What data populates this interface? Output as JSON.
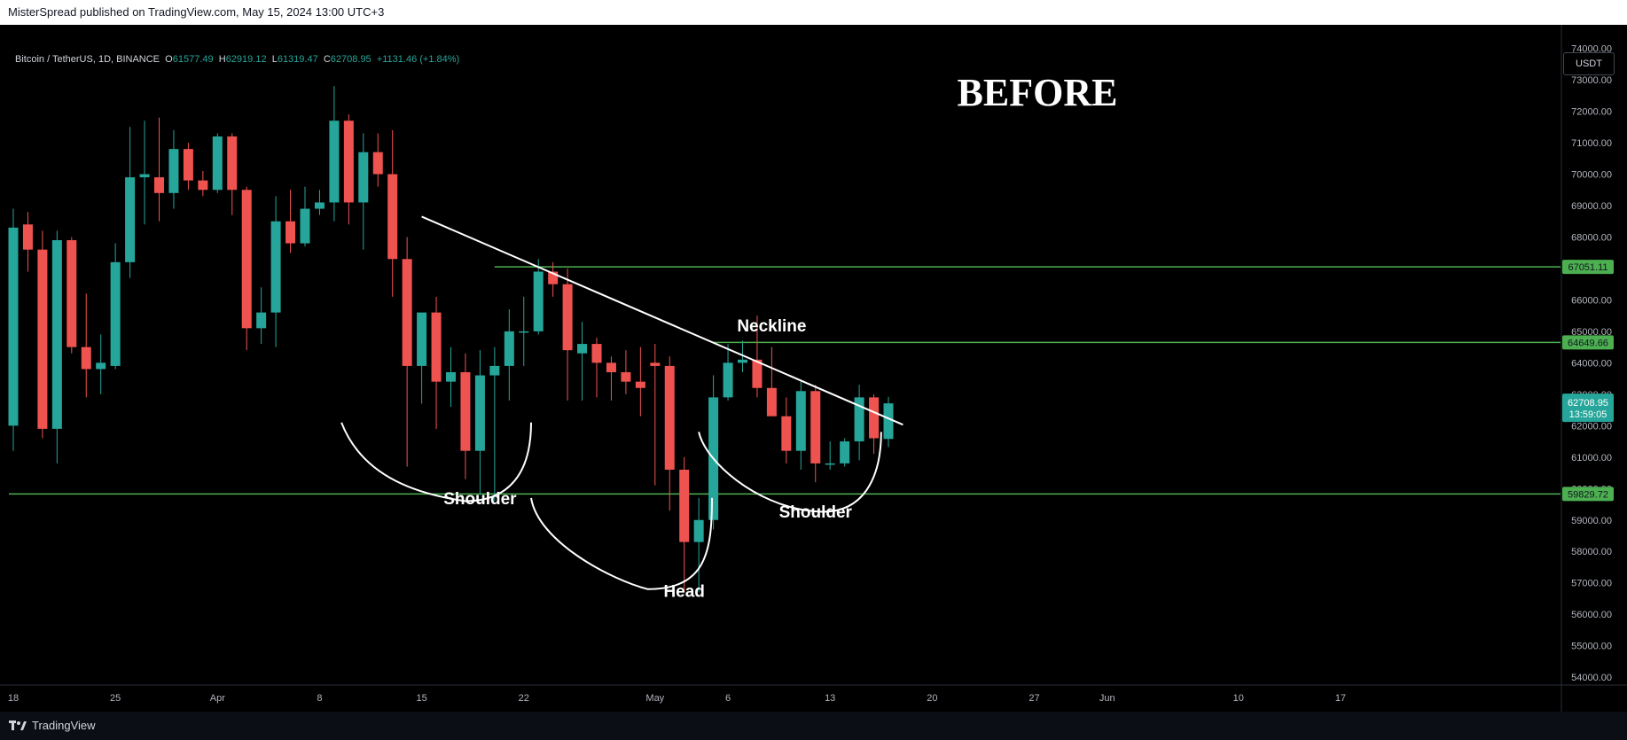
{
  "header": {
    "published_text": "MisterSpread published on TradingView.com, May 15, 2024 13:00 UTC+3"
  },
  "symbol": {
    "name": "Bitcoin / TetherUS, 1D, BINANCE",
    "open_label": "O",
    "open": "61577.49",
    "high_label": "H",
    "high": "62919.12",
    "low_label": "L",
    "low": "61319.47",
    "close_label": "C",
    "close": "62708.95",
    "change": "+1131.46 (+1.84%)"
  },
  "currency_button": "USDT",
  "brand": {
    "name": "TradingView"
  },
  "colors": {
    "up": "#26a69a",
    "down": "#ef5350",
    "level": "#4caf50",
    "background": "#000000",
    "text": "#d1d4dc"
  },
  "chart_data": {
    "type": "candlestick",
    "title": "BEFORE",
    "y_ticks": [
      54000,
      55000,
      56000,
      57000,
      58000,
      59000,
      60000,
      61000,
      62000,
      63000,
      64000,
      65000,
      66000,
      67000,
      68000,
      69000,
      70000,
      71000,
      72000,
      73000,
      74000
    ],
    "ylim": [
      53750,
      74750
    ],
    "x_ticks": [
      {
        "label": "18",
        "i": 0
      },
      {
        "label": "25",
        "i": 7
      },
      {
        "label": "Apr",
        "i": 14
      },
      {
        "label": "8",
        "i": 21
      },
      {
        "label": "15",
        "i": 28
      },
      {
        "label": "22",
        "i": 35
      },
      {
        "label": "May",
        "i": 44
      },
      {
        "label": "6",
        "i": 49
      },
      {
        "label": "13",
        "i": 56
      },
      {
        "label": "20",
        "i": 63
      },
      {
        "label": "27",
        "i": 70
      },
      {
        "label": "Jun",
        "i": 75
      },
      {
        "label": "10",
        "i": 84
      },
      {
        "label": "17",
        "i": 91
      }
    ],
    "candles": [
      {
        "o": 62000,
        "h": 68900,
        "l": 61200,
        "c": 68300
      },
      {
        "o": 68400,
        "h": 68800,
        "l": 66900,
        "c": 67600
      },
      {
        "o": 67600,
        "h": 68200,
        "l": 61600,
        "c": 61900
      },
      {
        "o": 61900,
        "h": 68200,
        "l": 60800,
        "c": 67900
      },
      {
        "o": 67900,
        "h": 68000,
        "l": 64300,
        "c": 64500
      },
      {
        "o": 64500,
        "h": 66200,
        "l": 62900,
        "c": 63800
      },
      {
        "o": 63800,
        "h": 64900,
        "l": 63000,
        "c": 64000
      },
      {
        "o": 63900,
        "h": 67800,
        "l": 63800,
        "c": 67200
      },
      {
        "o": 67200,
        "h": 71500,
        "l": 66700,
        "c": 69900
      },
      {
        "o": 69900,
        "h": 71700,
        "l": 68400,
        "c": 70000
      },
      {
        "o": 69900,
        "h": 71800,
        "l": 68500,
        "c": 69400
      },
      {
        "o": 69400,
        "h": 71400,
        "l": 68900,
        "c": 70800
      },
      {
        "o": 70800,
        "h": 71000,
        "l": 69500,
        "c": 69800
      },
      {
        "o": 69800,
        "h": 70100,
        "l": 69300,
        "c": 69500
      },
      {
        "o": 69500,
        "h": 71300,
        "l": 69400,
        "c": 71200
      },
      {
        "o": 71200,
        "h": 71300,
        "l": 68700,
        "c": 69500
      },
      {
        "o": 69500,
        "h": 69600,
        "l": 64400,
        "c": 65100
      },
      {
        "o": 65100,
        "h": 66400,
        "l": 64600,
        "c": 65600
      },
      {
        "o": 65600,
        "h": 69300,
        "l": 64500,
        "c": 68500
      },
      {
        "o": 68500,
        "h": 69500,
        "l": 67500,
        "c": 67800
      },
      {
        "o": 67800,
        "h": 69600,
        "l": 67700,
        "c": 68900
      },
      {
        "o": 68900,
        "h": 69500,
        "l": 68700,
        "c": 69100
      },
      {
        "o": 69100,
        "h": 72800,
        "l": 68500,
        "c": 71700
      },
      {
        "o": 71700,
        "h": 71900,
        "l": 68400,
        "c": 69100
      },
      {
        "o": 69100,
        "h": 71300,
        "l": 67600,
        "c": 70700
      },
      {
        "o": 70700,
        "h": 71300,
        "l": 69600,
        "c": 70000
      },
      {
        "o": 70000,
        "h": 71400,
        "l": 66100,
        "c": 67300
      },
      {
        "o": 67300,
        "h": 68000,
        "l": 60700,
        "c": 63900
      },
      {
        "o": 63900,
        "h": 65500,
        "l": 62700,
        "c": 65600
      },
      {
        "o": 65600,
        "h": 66100,
        "l": 61900,
        "c": 63400
      },
      {
        "o": 63400,
        "h": 64500,
        "l": 62600,
        "c": 63700
      },
      {
        "o": 63700,
        "h": 64300,
        "l": 60300,
        "c": 61200
      },
      {
        "o": 61200,
        "h": 64400,
        "l": 59800,
        "c": 63600
      },
      {
        "o": 63600,
        "h": 64500,
        "l": 59600,
        "c": 63900
      },
      {
        "o": 63900,
        "h": 65700,
        "l": 62800,
        "c": 65000
      },
      {
        "o": 65000,
        "h": 66100,
        "l": 63900,
        "c": 65000
      },
      {
        "o": 65000,
        "h": 67300,
        "l": 64900,
        "c": 66900
      },
      {
        "o": 66900,
        "h": 67200,
        "l": 66100,
        "c": 66500
      },
      {
        "o": 66500,
        "h": 67000,
        "l": 62800,
        "c": 64400
      },
      {
        "o": 64300,
        "h": 65300,
        "l": 62800,
        "c": 64600
      },
      {
        "o": 64600,
        "h": 64800,
        "l": 62900,
        "c": 64000
      },
      {
        "o": 64000,
        "h": 64200,
        "l": 62800,
        "c": 63700
      },
      {
        "o": 63700,
        "h": 64400,
        "l": 63000,
        "c": 63400
      },
      {
        "o": 63400,
        "h": 64500,
        "l": 62300,
        "c": 63200
      },
      {
        "o": 64000,
        "h": 64600,
        "l": 60100,
        "c": 63900
      },
      {
        "o": 63900,
        "h": 64200,
        "l": 59300,
        "c": 60600
      },
      {
        "o": 60600,
        "h": 61000,
        "l": 56700,
        "c": 58300
      },
      {
        "o": 58300,
        "h": 59700,
        "l": 56700,
        "c": 59000
      },
      {
        "o": 59000,
        "h": 63600,
        "l": 58700,
        "c": 62900
      },
      {
        "o": 62900,
        "h": 64600,
        "l": 62800,
        "c": 64000
      },
      {
        "o": 64000,
        "h": 64700,
        "l": 63700,
        "c": 64100
      },
      {
        "o": 64100,
        "h": 65500,
        "l": 62900,
        "c": 63200
      },
      {
        "o": 63200,
        "h": 64500,
        "l": 62300,
        "c": 62300
      },
      {
        "o": 62300,
        "h": 62900,
        "l": 60800,
        "c": 61200
      },
      {
        "o": 61200,
        "h": 63400,
        "l": 60600,
        "c": 63100
      },
      {
        "o": 63100,
        "h": 63300,
        "l": 60200,
        "c": 60800
      },
      {
        "o": 60800,
        "h": 61500,
        "l": 60600,
        "c": 60800
      },
      {
        "o": 60800,
        "h": 61600,
        "l": 60700,
        "c": 61500
      },
      {
        "o": 61500,
        "h": 63300,
        "l": 60900,
        "c": 62900
      },
      {
        "o": 62900,
        "h": 63000,
        "l": 61100,
        "c": 61600
      },
      {
        "o": 61577.49,
        "h": 62919.12,
        "l": 61319.47,
        "c": 62708.95
      }
    ],
    "levels": [
      {
        "price": 67051.11,
        "label": "67051.11",
        "from": 33
      },
      {
        "price": 64649.66,
        "label": "64649.66",
        "from": 48
      },
      {
        "price": 59829.72,
        "label": "59829.72",
        "from": 0
      }
    ],
    "last_price": {
      "label": "62708.95",
      "countdown": "13:59:05",
      "price": 62708.95
    },
    "trendline": {
      "from": {
        "i": 28,
        "price": 68650
      },
      "to": {
        "i": 61,
        "price": 62030
      }
    },
    "annotations": [
      {
        "text": "Neckline",
        "i": 52,
        "price": 65000
      },
      {
        "text": "Shoulder",
        "i": 32,
        "price": 59500
      },
      {
        "text": "Head",
        "i": 46,
        "price": 56550
      },
      {
        "text": "Shoulder",
        "i": 55,
        "price": 59080
      }
    ]
  }
}
